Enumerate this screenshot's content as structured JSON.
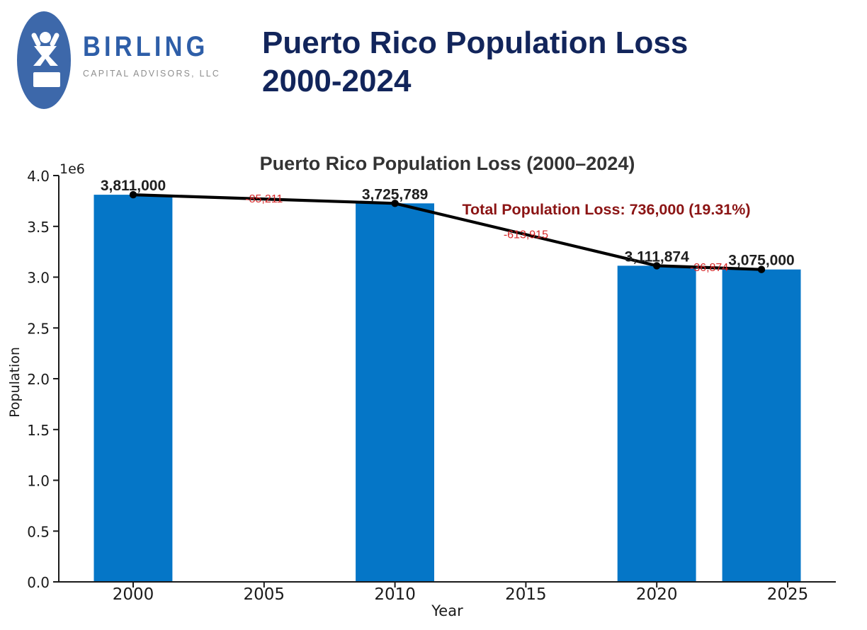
{
  "header": {
    "brand": "BIRLING",
    "brand_subtitle": "CAPITAL ADVISORS, LLC",
    "title_line1": "Puerto Rico Population Loss",
    "title_line2": "2000-2024",
    "logo_icon": "person-raised-arms-icon",
    "colors": {
      "logo_ellipse": "#3d68aa",
      "brand_blue": "#2e5ea8",
      "brand_gray": "#8e8e8e",
      "title_navy": "#12255b"
    }
  },
  "chart_data": {
    "type": "bar+line",
    "title": "Puerto Rico Population Loss (2000–2024)",
    "xlabel": "Year",
    "ylabel": "Population",
    "y_offset_label": "1e6",
    "x": [
      2000,
      2010,
      2020,
      2024
    ],
    "values": [
      3811000,
      3725789,
      3111874,
      3075000
    ],
    "point_labels": [
      "3,811,000",
      "3,725,789",
      "3,111,874",
      "3,075,000"
    ],
    "diffs": [
      -85211,
      -613915,
      -36874
    ],
    "diff_labels": [
      "-85,211",
      "-613,915",
      "-36,874"
    ],
    "annotation": "Total Population Loss: 736,000 (19.31%)",
    "x_ticks": [
      2000,
      2005,
      2010,
      2015,
      2020,
      2025
    ],
    "y_ticks": [
      0.0,
      0.5,
      1.0,
      1.5,
      2.0,
      2.5,
      3.0,
      3.5,
      4.0
    ],
    "ylim": [
      0,
      4000000
    ],
    "xlim": [
      1997.16,
      2026.84
    ],
    "bar_width_years": 3,
    "grid": false,
    "colors": {
      "bar": "#0576c7",
      "line": "#000000",
      "marker": "#000000",
      "point_label": "#1f1f1f",
      "diff_label": "#d62728",
      "annotation": "#8b1414",
      "title": "#333333",
      "axis": "#1a1a1a"
    }
  }
}
